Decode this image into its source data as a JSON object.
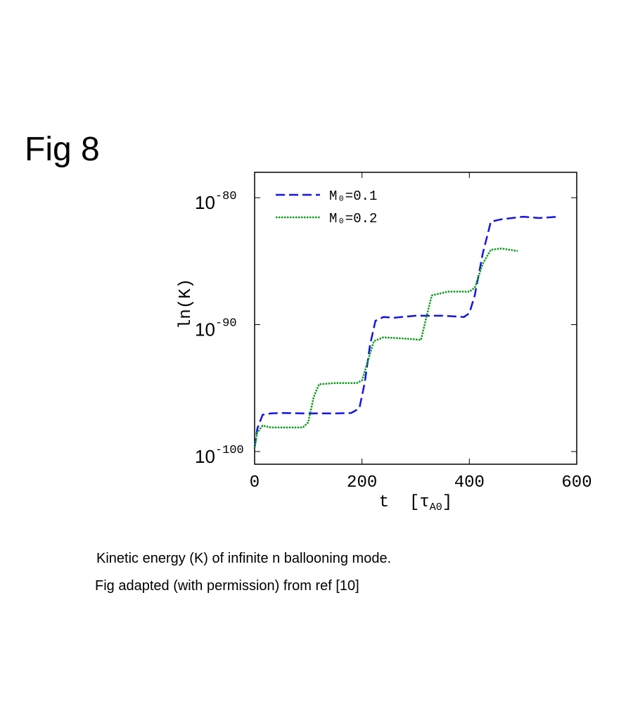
{
  "figure_label": "Fig 8",
  "caption": [
    "Kinetic energy (K) of infinite n ballooning mode.",
    "Fig adapted (with permission) from ref [10]"
  ],
  "chart_data": {
    "type": "line",
    "ylabel": "ln(K)",
    "xlabel": {
      "text": "t  [τ",
      "subscript": "A0",
      "suffix": "]"
    },
    "yscale": "log",
    "xlim": [
      0,
      600
    ],
    "xticks": [
      0,
      200,
      400,
      600
    ],
    "ylim": [
      1e-101,
      1e-78
    ],
    "yticks": [
      {
        "value": 1e-100,
        "label": "10",
        "exponent": "-100"
      },
      {
        "value": 1e-90,
        "label": "10",
        "exponent": "-90"
      },
      {
        "value": 1e-80,
        "label": "10",
        "exponent": "-80"
      }
    ],
    "legend": "upper left",
    "series": [
      {
        "name": "M₀=0.1",
        "color": "#1414e6",
        "dash": "dashed",
        "x": [
          0,
          5,
          15,
          30,
          50,
          100,
          150,
          180,
          195,
          205,
          215,
          225,
          240,
          260,
          300,
          350,
          390,
          400,
          410,
          425,
          440,
          460,
          500,
          530,
          565
        ],
        "values": [
          2e-100,
          6.3e-99,
          7.9e-98,
          1e-97,
          1.1e-97,
          1e-97,
          1e-97,
          1.1e-97,
          2.5e-97,
          2.5e-95,
          2.5e-92,
          2e-90,
          4e-90,
          3.5e-90,
          5e-90,
          5e-90,
          4e-90,
          7.9e-90,
          2e-88,
          4e-85,
          1.3e-82,
          2e-82,
          3.2e-82,
          2.5e-82,
          3.2e-82
        ]
      },
      {
        "name": "M₀=0.2",
        "color": "#0a9a1a",
        "dash": "dotted",
        "x": [
          0,
          5,
          15,
          30,
          60,
          90,
          100,
          110,
          120,
          150,
          190,
          200,
          210,
          222,
          240,
          280,
          310,
          320,
          330,
          360,
          400,
          410,
          425,
          440,
          460,
          490
        ],
        "values": [
          2e-100,
          3.2e-99,
          1.1e-98,
          7.9e-99,
          7.9e-99,
          7.9e-99,
          2e-98,
          2e-96,
          2e-95,
          2.5e-95,
          2.5e-95,
          4e-95,
          1e-93,
          5e-92,
          1e-91,
          7.9e-92,
          6.3e-92,
          4e-90,
          2e-88,
          4e-88,
          4e-88,
          7.9e-88,
          6.3e-86,
          7.9e-85,
          1e-84,
          6.3e-85
        ]
      }
    ]
  }
}
